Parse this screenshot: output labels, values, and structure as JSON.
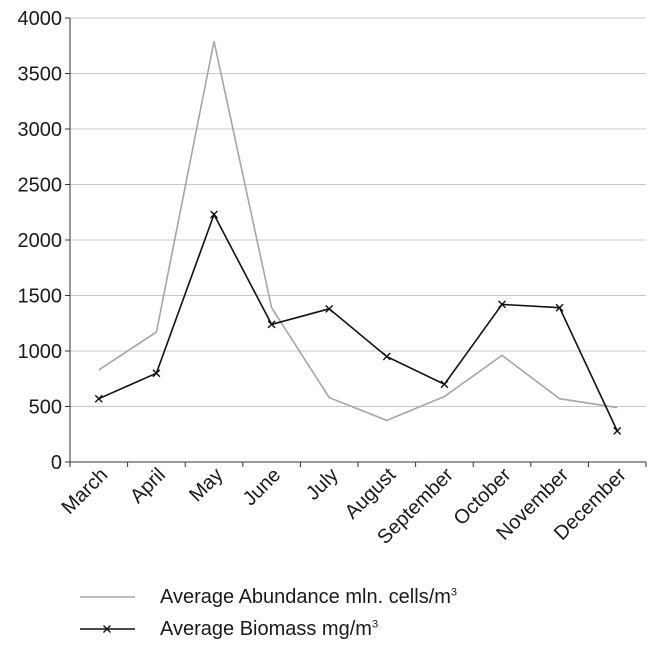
{
  "chart_data": {
    "type": "line",
    "title": "",
    "xlabel": "",
    "ylabel": "",
    "categories": [
      "March",
      "April",
      "May",
      "June",
      "July",
      "August",
      "September",
      "October",
      "November",
      "December"
    ],
    "ylim": [
      0,
      4000
    ],
    "yticks": [
      0,
      500,
      1000,
      1500,
      2000,
      2500,
      3000,
      3500,
      4000
    ],
    "grid": true,
    "legend_position": "bottom",
    "series": [
      {
        "name": "Average Abundance mln. cells/m",
        "name_sup": "3",
        "color": "#a6a6a6",
        "marker": "none",
        "values": [
          830,
          1170,
          3790,
          1390,
          580,
          375,
          590,
          960,
          570,
          490
        ]
      },
      {
        "name": "Average Biomass mg/m",
        "name_sup": "3",
        "color": "#111111",
        "marker": "x",
        "values": [
          570,
          800,
          2230,
          1240,
          1380,
          950,
          700,
          1420,
          1390,
          280
        ]
      }
    ]
  }
}
